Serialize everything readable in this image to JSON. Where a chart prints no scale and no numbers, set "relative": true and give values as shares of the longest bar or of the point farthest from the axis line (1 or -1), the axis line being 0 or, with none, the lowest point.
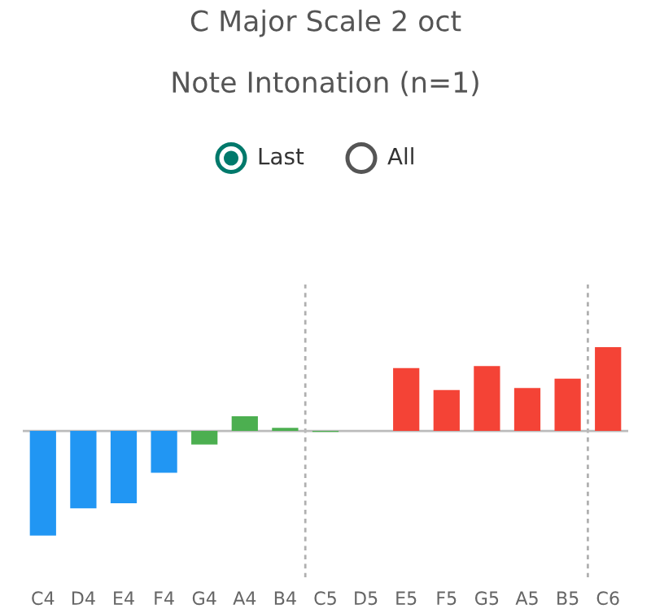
{
  "chart_data": {
    "type": "bar",
    "title": "C Major Scale 2 oct",
    "subtitle": "Note Intonation (n=1)",
    "annotations": [
      "Last",
      "All"
    ],
    "categories": [
      "C4",
      "D4",
      "E4",
      "F4",
      "G4",
      "A4",
      "B4",
      "C5",
      "D5",
      "E5",
      "F5",
      "G5",
      "A5",
      "B5",
      "C6"
    ],
    "values": [
      -1,
      -0.74,
      -0.69,
      -0.4,
      -0.13,
      0.14,
      0.03,
      -0.01,
      0,
      0.6,
      0.39,
      0.62,
      0.41,
      0.5,
      0.8
    ],
    "colors": [
      "#2196f3",
      "#2196f3",
      "#2196f3",
      "#2196f3",
      "#4caf50",
      "#4caf50",
      "#4caf50",
      "#4caf50",
      "#f44336",
      "#f44336",
      "#f44336",
      "#f44336",
      "#f44336",
      "#f44336",
      "#f44336"
    ],
    "relative": true
  }
}
